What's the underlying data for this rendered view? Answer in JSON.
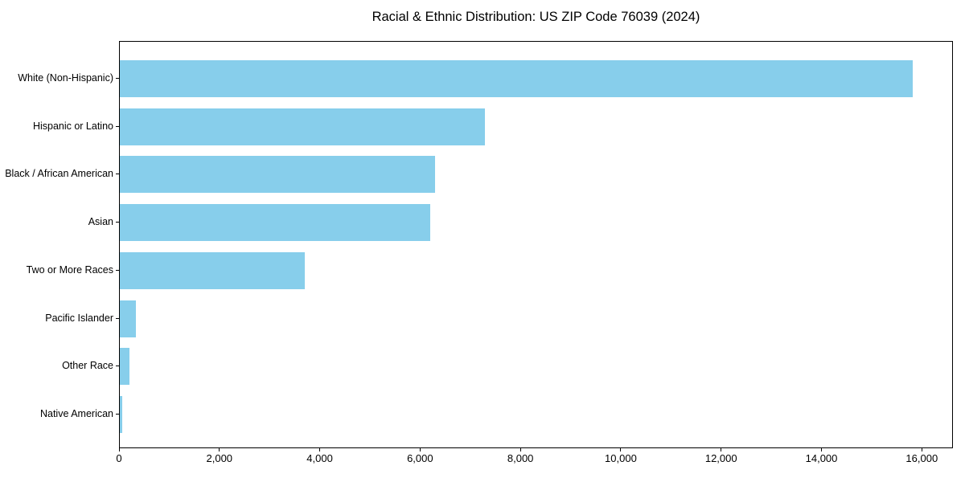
{
  "title": "Racial & Ethnic Distribution: US ZIP Code 76039 (2024)",
  "chart_data": {
    "type": "bar",
    "orientation": "horizontal",
    "title": "Racial & Ethnic Distribution: US ZIP Code 76039 (2024)",
    "xlabel": "",
    "ylabel": "",
    "categories": [
      "White (Non-Hispanic)",
      "Hispanic or Latino",
      "Black / African American",
      "Asian",
      "Two or More Races",
      "Pacific Islander",
      "Other Race",
      "Native American"
    ],
    "values": [
      15830,
      7285,
      6290,
      6205,
      3695,
      315,
      190,
      45
    ],
    "xlim": [
      0,
      16620
    ],
    "x_ticks": [
      0,
      2000,
      4000,
      6000,
      8000,
      10000,
      12000,
      14000,
      16000
    ],
    "x_tick_labels": [
      "0",
      "2,000",
      "4,000",
      "6,000",
      "8,000",
      "10,000",
      "12,000",
      "14,000",
      "16,000"
    ],
    "bar_color": "#87CEEB",
    "axis_color": "#000000",
    "text_color": "#000000",
    "grid": false,
    "legend": null
  }
}
